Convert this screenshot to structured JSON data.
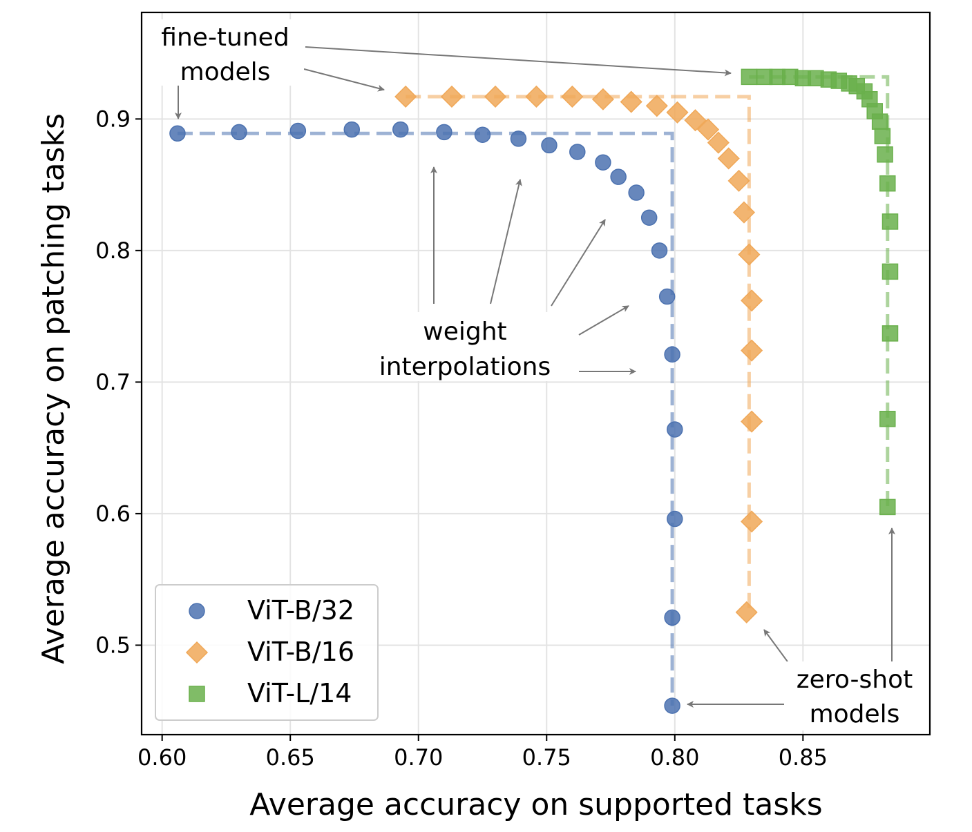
{
  "chart_data": {
    "type": "scatter",
    "xlabel": "Average accuracy on supported tasks",
    "ylabel": "Average accuracy on patching tasks",
    "xlim": [
      0.592,
      0.8995
    ],
    "ylim": [
      0.432,
      0.981
    ],
    "x_ticks": [
      0.6,
      0.65,
      0.7,
      0.75,
      0.8,
      0.85
    ],
    "x_tick_labels": [
      "0.60",
      "0.65",
      "0.70",
      "0.75",
      "0.80",
      "0.85"
    ],
    "y_ticks": [
      0.5,
      0.6,
      0.7,
      0.8,
      0.9
    ],
    "y_tick_labels": [
      "0.5",
      "0.6",
      "0.7",
      "0.8",
      "0.9"
    ],
    "grid": true,
    "legend_position": "lower-left",
    "series": [
      {
        "name": "ViT-B/32",
        "marker": "circle",
        "color": "#4c72b0",
        "points": [
          [
            0.606,
            0.889
          ],
          [
            0.63,
            0.89
          ],
          [
            0.653,
            0.891
          ],
          [
            0.674,
            0.892
          ],
          [
            0.693,
            0.892
          ],
          [
            0.71,
            0.89
          ],
          [
            0.725,
            0.888
          ],
          [
            0.739,
            0.885
          ],
          [
            0.751,
            0.88
          ],
          [
            0.762,
            0.875
          ],
          [
            0.772,
            0.867
          ],
          [
            0.778,
            0.856
          ],
          [
            0.785,
            0.844
          ],
          [
            0.79,
            0.825
          ],
          [
            0.794,
            0.8
          ],
          [
            0.797,
            0.765
          ],
          [
            0.799,
            0.721
          ],
          [
            0.8,
            0.664
          ],
          [
            0.8,
            0.596
          ],
          [
            0.799,
            0.521
          ],
          [
            0.799,
            0.454
          ]
        ],
        "frontier": [
          [
            0.606,
            0.889
          ],
          [
            0.799,
            0.889
          ],
          [
            0.799,
            0.454
          ]
        ]
      },
      {
        "name": "ViT-B/16",
        "marker": "diamond",
        "color": "#f0a858",
        "points": [
          [
            0.695,
            0.917
          ],
          [
            0.713,
            0.917
          ],
          [
            0.73,
            0.917
          ],
          [
            0.746,
            0.917
          ],
          [
            0.76,
            0.917
          ],
          [
            0.772,
            0.915
          ],
          [
            0.783,
            0.913
          ],
          [
            0.793,
            0.91
          ],
          [
            0.801,
            0.905
          ],
          [
            0.808,
            0.899
          ],
          [
            0.813,
            0.892
          ],
          [
            0.817,
            0.882
          ],
          [
            0.821,
            0.87
          ],
          [
            0.825,
            0.853
          ],
          [
            0.827,
            0.829
          ],
          [
            0.829,
            0.797
          ],
          [
            0.83,
            0.762
          ],
          [
            0.83,
            0.724
          ],
          [
            0.83,
            0.67
          ],
          [
            0.83,
            0.594
          ],
          [
            0.828,
            0.525
          ]
        ],
        "frontier": [
          [
            0.695,
            0.917
          ],
          [
            0.829,
            0.917
          ],
          [
            0.829,
            0.525
          ]
        ]
      },
      {
        "name": "ViT-L/14",
        "marker": "square",
        "color": "#6ab04c",
        "points": [
          [
            0.829,
            0.932
          ],
          [
            0.835,
            0.932
          ],
          [
            0.84,
            0.932
          ],
          [
            0.845,
            0.932
          ],
          [
            0.85,
            0.931
          ],
          [
            0.855,
            0.931
          ],
          [
            0.86,
            0.93
          ],
          [
            0.864,
            0.929
          ],
          [
            0.868,
            0.927
          ],
          [
            0.871,
            0.925
          ],
          [
            0.874,
            0.921
          ],
          [
            0.876,
            0.915
          ],
          [
            0.878,
            0.906
          ],
          [
            0.88,
            0.898
          ],
          [
            0.881,
            0.887
          ],
          [
            0.882,
            0.873
          ],
          [
            0.883,
            0.851
          ],
          [
            0.884,
            0.822
          ],
          [
            0.884,
            0.784
          ],
          [
            0.884,
            0.737
          ],
          [
            0.883,
            0.672
          ],
          [
            0.883,
            0.605
          ]
        ],
        "frontier": [
          [
            0.829,
            0.932
          ],
          [
            0.883,
            0.932
          ],
          [
            0.883,
            0.605
          ]
        ]
      }
    ],
    "annotations": [
      {
        "text_lines": [
          "fine-tuned",
          "models"
        ]
      },
      {
        "text_lines": [
          "weight",
          "interpolations"
        ]
      },
      {
        "text_lines": [
          "zero-shot",
          "models"
        ]
      }
    ]
  }
}
